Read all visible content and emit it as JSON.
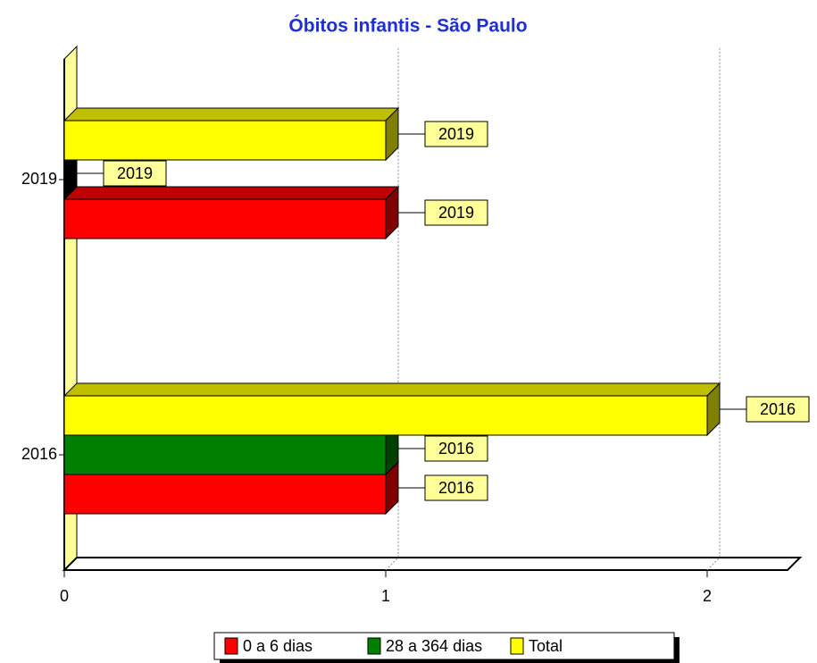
{
  "chart_data": {
    "type": "bar3d_horizontal",
    "title": "Óbitos infantis - São Paulo",
    "categories": [
      "2016",
      "2019"
    ],
    "series": [
      {
        "name": "0 a 6 dias",
        "color": "#ff0000",
        "values": [
          1,
          1
        ]
      },
      {
        "name": "28 a 364 dias",
        "color": "#008000",
        "values": [
          1,
          0
        ]
      },
      {
        "name": "Total",
        "color": "#ffff00",
        "values": [
          2,
          1
        ]
      }
    ],
    "xlim": [
      0,
      2.25
    ],
    "xticks": [
      0,
      1,
      2
    ],
    "grid": true
  }
}
